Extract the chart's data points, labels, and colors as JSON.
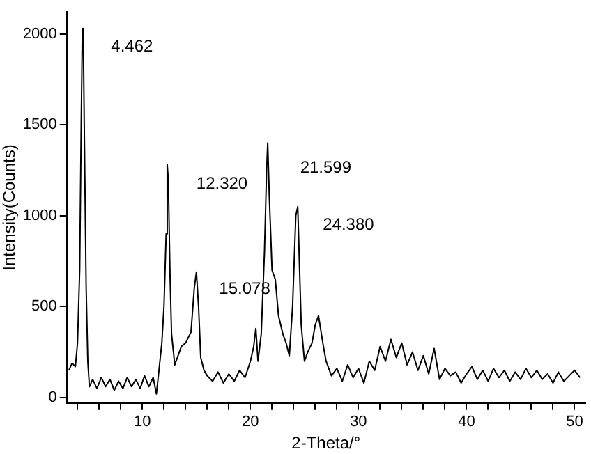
{
  "chart_data": {
    "type": "line",
    "xlabel": "2-Theta/°",
    "ylabel": "Intensity(Counts)",
    "xlim": [
      3,
      51
    ],
    "ylim": [
      -30,
      2120
    ],
    "xticks": [
      {
        "value": 4,
        "label": null
      },
      {
        "value": 6,
        "label": null
      },
      {
        "value": 8,
        "label": null
      },
      10,
      {
        "value": 12,
        "label": null
      },
      {
        "value": 14,
        "label": null
      },
      {
        "value": 16,
        "label": null
      },
      {
        "value": 18,
        "label": null
      },
      20,
      {
        "value": 22,
        "label": null
      },
      {
        "value": 24,
        "label": null
      },
      {
        "value": 26,
        "label": null
      },
      {
        "value": 28,
        "label": null
      },
      30,
      {
        "value": 32,
        "label": null
      },
      {
        "value": 34,
        "label": null
      },
      {
        "value": 36,
        "label": null
      },
      {
        "value": 38,
        "label": null
      },
      40,
      {
        "value": 42,
        "label": null
      },
      {
        "value": 44,
        "label": null
      },
      {
        "value": 46,
        "label": null
      },
      {
        "value": 48,
        "label": null
      },
      50
    ],
    "yticks": [
      0,
      500,
      1000,
      1500,
      2000
    ],
    "grid": false,
    "legend": false,
    "marker": "none",
    "line_style": "solid",
    "series": [
      {
        "color": "#000000",
        "x": [
          3.2,
          3.5,
          3.8,
          4.0,
          4.2,
          4.35,
          4.45,
          4.55,
          4.65,
          4.8,
          4.95,
          5.1,
          5.4,
          5.8,
          6.2,
          6.6,
          7.0,
          7.4,
          7.8,
          8.2,
          8.6,
          9.0,
          9.4,
          9.8,
          10.2,
          10.6,
          11.0,
          11.3,
          11.5,
          11.8,
          12.0,
          12.2,
          12.3,
          12.4,
          12.55,
          12.7,
          13.0,
          13.3,
          13.6,
          14.0,
          14.5,
          14.8,
          15.0,
          15.2,
          15.4,
          15.7,
          16.0,
          16.5,
          17.0,
          17.5,
          18.0,
          18.5,
          19.0,
          19.5,
          20.0,
          20.3,
          20.5,
          20.7,
          21.0,
          21.3,
          21.5,
          21.6,
          21.75,
          22.0,
          22.3,
          22.6,
          23.0,
          23.3,
          23.6,
          23.9,
          24.2,
          24.38,
          24.55,
          24.7,
          25.0,
          25.3,
          25.7,
          26.0,
          26.3,
          26.7,
          27.0,
          27.5,
          28.0,
          28.5,
          29.0,
          29.5,
          30.0,
          30.5,
          31.0,
          31.5,
          32.0,
          32.5,
          33.0,
          33.5,
          34.0,
          34.5,
          35.0,
          35.5,
          36.0,
          36.5,
          37.0,
          37.5,
          38.0,
          38.5,
          39.0,
          39.5,
          40.0,
          40.5,
          41.0,
          41.5,
          42.0,
          42.5,
          43.0,
          43.5,
          44.0,
          44.5,
          45.0,
          45.5,
          46.0,
          46.5,
          47.0,
          47.5,
          48.0,
          48.5,
          49.0,
          49.5,
          50.0,
          50.5
        ],
        "values": [
          150,
          190,
          170,
          300,
          700,
          1550,
          2030,
          1900,
          1350,
          600,
          200,
          60,
          100,
          50,
          110,
          60,
          100,
          40,
          90,
          50,
          110,
          60,
          100,
          50,
          120,
          60,
          110,
          20,
          130,
          300,
          500,
          900,
          1280,
          1200,
          700,
          350,
          180,
          230,
          280,
          300,
          360,
          600,
          690,
          500,
          220,
          150,
          120,
          90,
          140,
          80,
          130,
          90,
          150,
          110,
          200,
          280,
          380,
          200,
          350,
          800,
          1250,
          1400,
          1100,
          700,
          650,
          450,
          350,
          300,
          230,
          500,
          1000,
          1050,
          700,
          400,
          200,
          250,
          300,
          400,
          450,
          300,
          200,
          120,
          160,
          90,
          180,
          110,
          160,
          80,
          200,
          150,
          280,
          200,
          320,
          220,
          300,
          180,
          250,
          150,
          230,
          130,
          270,
          100,
          160,
          120,
          140,
          80,
          130,
          170,
          100,
          150,
          90,
          160,
          110,
          150,
          90,
          140,
          100,
          160,
          110,
          150,
          100,
          130,
          80,
          140,
          90,
          120,
          150,
          110
        ]
      }
    ],
    "annotations": [
      "4.462",
      "12.320",
      "21.599",
      "24.380",
      "15.078"
    ]
  }
}
